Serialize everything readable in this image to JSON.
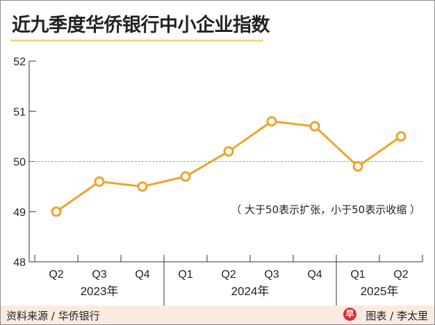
{
  "title": "近九季度华侨银行中小企业指数",
  "source": "资料来源 / 华侨银行",
  "credit": "图表 / 李太里",
  "logo_text": "早",
  "colors": {
    "line": "#f0a22e",
    "title_underline": "#f6d97c",
    "footer_bg": "#fbeadf"
  },
  "chart_data": {
    "type": "line",
    "title": "近九季度华侨银行中小企业指数",
    "categories": [
      "Q2",
      "Q3",
      "Q4",
      "Q1",
      "Q2",
      "Q3",
      "Q4",
      "Q1",
      "Q2"
    ],
    "groups": [
      {
        "label": "2023年",
        "count": 3
      },
      {
        "label": "2024年",
        "count": 4
      },
      {
        "label": "2025年",
        "count": 2
      }
    ],
    "series": [
      {
        "name": "华侨银行中小企业指数",
        "values": [
          49.0,
          49.6,
          49.5,
          49.7,
          50.2,
          50.8,
          50.7,
          49.9,
          50.5
        ]
      }
    ],
    "yticks": [
      48,
      49,
      50,
      51,
      52
    ],
    "ylim": [
      48,
      52
    ],
    "reference_line": 50,
    "annotation": "（ 大于50表示扩张，小于50表示收缩 ）",
    "xlabel": "",
    "ylabel": "",
    "grid": false
  }
}
